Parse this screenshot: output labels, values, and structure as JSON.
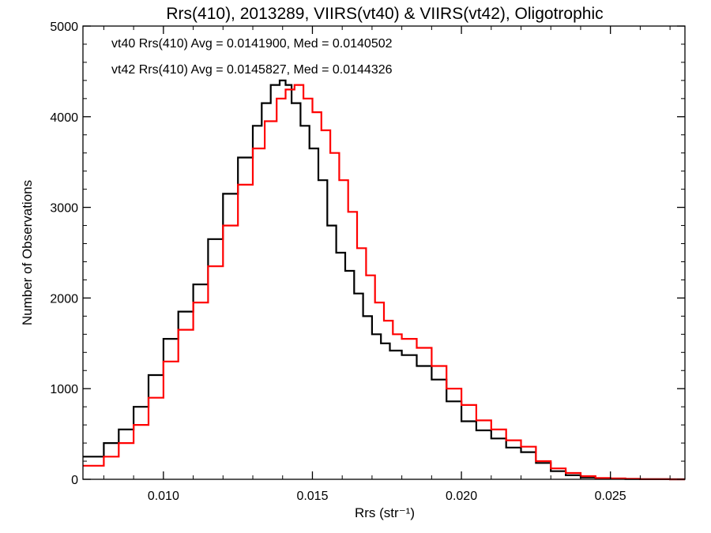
{
  "chart_data": {
    "type": "histogram",
    "title": "Rrs(410), 2013289, VIIRS(vt40) & VIIRS(vt42), Oligotrophic",
    "xlabel": "Rrs (str⁻¹)",
    "ylabel": "Number of Observations",
    "xlim": [
      0.0073,
      0.0275
    ],
    "ylim": [
      0,
      5000
    ],
    "x_ticks": [
      0.01,
      0.015,
      0.02,
      0.025
    ],
    "x_tick_labels": [
      "0.010",
      "0.015",
      "0.020",
      "0.025"
    ],
    "y_ticks": [
      0,
      1000,
      2000,
      3000,
      4000,
      5000
    ],
    "y_tick_labels": [
      "0",
      "1000",
      "2000",
      "3000",
      "4000",
      "5000"
    ],
    "grid": false,
    "annotations": [
      {
        "text": "vt40 Rrs(410) Avg = 0.0141900, Med = 0.0140502",
        "color": "#000000"
      },
      {
        "text": "vt42 Rrs(410) Avg = 0.0145827, Med = 0.0144326",
        "color": "#ff0000"
      }
    ],
    "series": [
      {
        "color": "#000000",
        "x": [
          0.0073,
          0.008,
          0.0085,
          0.009,
          0.0095,
          0.01,
          0.0105,
          0.011,
          0.0115,
          0.012,
          0.0125,
          0.013,
          0.0133,
          0.0136,
          0.0139,
          0.0141,
          0.0143,
          0.0146,
          0.0149,
          0.0152,
          0.0155,
          0.0158,
          0.0161,
          0.0164,
          0.0167,
          0.017,
          0.0173,
          0.0176,
          0.018,
          0.0185,
          0.019,
          0.0195,
          0.02,
          0.0205,
          0.021,
          0.0215,
          0.022,
          0.0225,
          0.023,
          0.0235,
          0.024,
          0.0245,
          0.025,
          0.0255,
          0.026,
          0.027,
          0.0275
        ],
        "y": [
          250,
          400,
          550,
          800,
          1150,
          1550,
          1850,
          2150,
          2650,
          3150,
          3550,
          3900,
          4150,
          4350,
          4400,
          4350,
          4150,
          3900,
          3650,
          3300,
          2800,
          2500,
          2300,
          2050,
          1800,
          1600,
          1500,
          1420,
          1370,
          1250,
          1100,
          860,
          640,
          540,
          450,
          350,
          300,
          180,
          90,
          45,
          20,
          10,
          5,
          3,
          1,
          0,
          0
        ]
      },
      {
        "color": "#ff0000",
        "x": [
          0.0073,
          0.008,
          0.0085,
          0.009,
          0.0095,
          0.01,
          0.0105,
          0.011,
          0.0115,
          0.012,
          0.0125,
          0.013,
          0.0134,
          0.0138,
          0.0141,
          0.0144,
          0.0147,
          0.015,
          0.0153,
          0.0156,
          0.0159,
          0.0162,
          0.0165,
          0.0168,
          0.0171,
          0.0174,
          0.0177,
          0.018,
          0.0185,
          0.019,
          0.0195,
          0.02,
          0.0205,
          0.021,
          0.0215,
          0.022,
          0.0225,
          0.023,
          0.0235,
          0.024,
          0.0245,
          0.025,
          0.0255,
          0.026,
          0.027,
          0.0275
        ],
        "y": [
          150,
          250,
          400,
          600,
          900,
          1300,
          1650,
          1950,
          2350,
          2800,
          3250,
          3650,
          3950,
          4200,
          4300,
          4350,
          4200,
          4050,
          3850,
          3600,
          3300,
          2950,
          2550,
          2250,
          1950,
          1750,
          1600,
          1550,
          1450,
          1250,
          1000,
          820,
          650,
          550,
          430,
          360,
          200,
          120,
          70,
          35,
          15,
          10,
          5,
          2,
          0,
          0
        ]
      }
    ]
  }
}
